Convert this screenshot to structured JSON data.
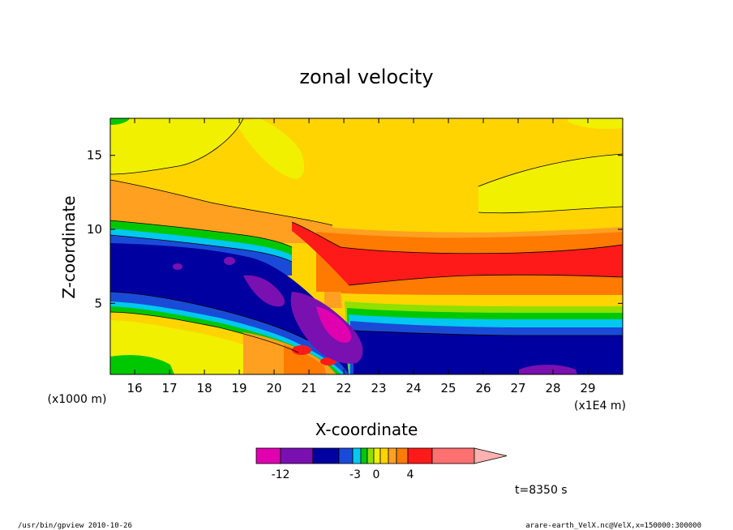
{
  "chart_data": {
    "type": "heatmap",
    "title": "zonal velocity",
    "xlabel": "X-coordinate",
    "ylabel": "Z-coordinate",
    "x_unit_left": "(x1000 m)",
    "x_unit_right": "(x1E4 m)",
    "xlim": [
      15.3,
      30.0
    ],
    "ylim": [
      0.2,
      17.5
    ],
    "x_ticks": [
      "16",
      "17",
      "18",
      "19",
      "20",
      "21",
      "22",
      "23",
      "24",
      "25",
      "26",
      "27",
      "28",
      "29"
    ],
    "x_tick_values": [
      16,
      17,
      18,
      19,
      20,
      21,
      22,
      23,
      24,
      25,
      26,
      27,
      28,
      29
    ],
    "y_ticks": [
      "5",
      "10",
      "15"
    ],
    "y_tick_values": [
      5,
      10,
      15
    ],
    "colorbar": {
      "colors": [
        "#e000b0",
        "#7a10b0",
        "#0000a0",
        "#1a4bd8",
        "#00c8f0",
        "#00c800",
        "#90e000",
        "#f0f000",
        "#ffd400",
        "#ffa020",
        "#ff7a00",
        "#ff1a1a",
        "#ff7070",
        "#ffb0b0"
      ],
      "labels": [
        {
          "text": "-12",
          "value": -12
        },
        {
          "text": "-3",
          "value": -3
        },
        {
          "text": "0",
          "value": 0
        },
        {
          "text": "4",
          "value": 4
        }
      ]
    },
    "time_label": "t=8350 s",
    "footer_left": "/usr/bin/gpview  2010-10-26",
    "footer_right": "arare-earth_VelX.nc@VelX,x=150000:300000"
  }
}
